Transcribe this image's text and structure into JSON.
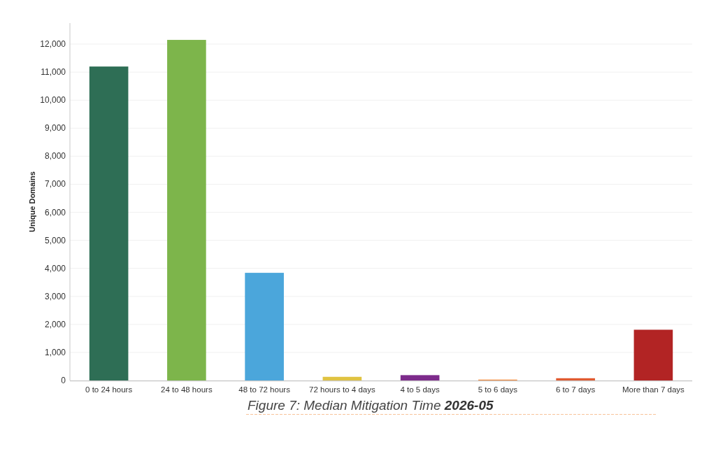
{
  "chart_data": {
    "type": "bar",
    "title": "Figure 7: Median Mitigation Time",
    "subtitle": "2026-05",
    "ylabel": "Unique Domains",
    "categories": [
      "0 to 24 hours",
      "24 to 48 hours",
      "48 to 72 hours",
      "72 hours to 4 days",
      "4 to 5 days",
      "5 to 6 days",
      "6 to 7 days",
      "More than 7 days"
    ],
    "values": [
      11200,
      12150,
      3840,
      130,
      190,
      30,
      80,
      1810
    ],
    "colors": [
      "#2e6e55",
      "#7db54b",
      "#4ba6db",
      "#e0c342",
      "#7d2b8b",
      "#f0883a",
      "#e05a30",
      "#b22424"
    ],
    "ylim": [
      0,
      12750
    ],
    "yticks": [
      0,
      {
        "value": 1000,
        "label": "1,000"
      },
      {
        "value": 2000,
        "label": "2,000"
      },
      {
        "value": 3000,
        "label": "3,000"
      },
      {
        "value": 4000,
        "label": "4,000"
      },
      {
        "value": 5000,
        "label": "5,000"
      },
      {
        "value": 6000,
        "label": "6,000"
      },
      {
        "value": 7000,
        "label": "7,000"
      },
      {
        "value": 8000,
        "label": "8,000"
      },
      {
        "value": 9000,
        "label": "9,000"
      },
      {
        "value": 10000,
        "label": "10,000"
      },
      {
        "value": 11000,
        "label": "11,000"
      },
      {
        "value": 12000,
        "label": "12,000"
      }
    ],
    "grid": "y"
  }
}
